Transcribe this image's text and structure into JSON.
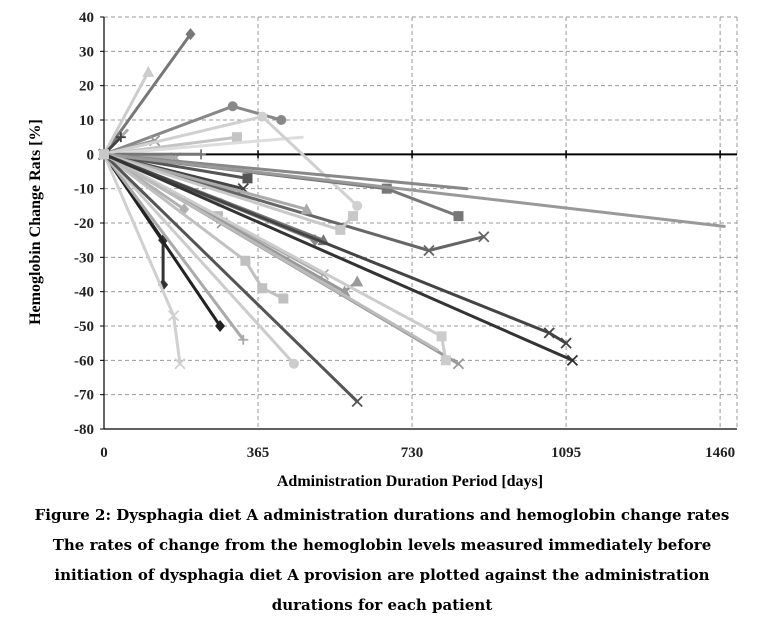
{
  "caption": {
    "title": "Figure 2: Dysphagia diet A administration durations and hemoglobin change rates",
    "line1": "The rates of change from the hemoglobin levels measured immediately before",
    "line2": "initiation of dysphagia diet A provision are plotted against the administration",
    "line3": "durations for each patient"
  },
  "chart_data": {
    "type": "line",
    "title": "",
    "xlabel": "Administration Duration  Period [days]",
    "ylabel": "Hemoglobin Change Rats [%]",
    "xlim": [
      0,
      1500
    ],
    "ylim": [
      -80,
      40
    ],
    "xticks": [
      0,
      365,
      730,
      1095,
      1460
    ],
    "yticks": [
      40,
      30,
      20,
      10,
      0,
      -10,
      -20,
      -30,
      -40,
      -50,
      -60,
      -70,
      -80
    ],
    "grid": "dashed",
    "legend": "none",
    "series": [
      {
        "color": "#777777",
        "marker": "diamond",
        "points": [
          [
            0,
            0
          ],
          [
            205,
            35
          ]
        ]
      },
      {
        "color": "#cccccc",
        "marker": "triangle",
        "points": [
          [
            0,
            0
          ],
          [
            105,
            24
          ]
        ]
      },
      {
        "color": "#888888",
        "marker": "circle",
        "points": [
          [
            0,
            0
          ],
          [
            305,
            14
          ],
          [
            420,
            10
          ]
        ]
      },
      {
        "color": "#c4c4c4",
        "marker": "square",
        "points": [
          [
            0,
            0
          ],
          [
            315,
            5
          ]
        ]
      },
      {
        "color": "#dddddd",
        "marker": "none",
        "points": [
          [
            0,
            0
          ],
          [
            470,
            5
          ]
        ]
      },
      {
        "color": "#999999",
        "marker": "cross",
        "points": [
          [
            0,
            0
          ],
          [
            120,
            4
          ]
        ]
      },
      {
        "color": "#aaaaaa",
        "marker": "none",
        "points": [
          [
            0,
            0
          ],
          [
            55,
            7
          ]
        ]
      },
      {
        "color": "#444444",
        "marker": "plus",
        "points": [
          [
            0,
            0
          ],
          [
            40,
            5
          ]
        ]
      },
      {
        "color": "#aaaaaa",
        "marker": "cross",
        "points": [
          [
            0,
            0
          ],
          [
            170,
            -1
          ]
        ]
      },
      {
        "color": "#777777",
        "marker": "plus",
        "points": [
          [
            0,
            0
          ],
          [
            230,
            0
          ]
        ]
      },
      {
        "color": "#d0d0d0",
        "marker": "circle",
        "points": [
          [
            0,
            0
          ],
          [
            375,
            11
          ],
          [
            600,
            -15
          ]
        ]
      },
      {
        "color": "#dddddd",
        "marker": "circle",
        "points": [
          [
            0,
            0
          ],
          [
            275,
            -14
          ]
        ]
      },
      {
        "color": "#555555",
        "marker": "square",
        "points": [
          [
            0,
            0
          ],
          [
            340,
            -7
          ]
        ]
      },
      {
        "color": "#444444",
        "marker": "cross",
        "points": [
          [
            0,
            0
          ],
          [
            330,
            -10
          ]
        ]
      },
      {
        "color": "#888888",
        "marker": "none",
        "points": [
          [
            0,
            0
          ],
          [
            860,
            -10
          ]
        ]
      },
      {
        "color": "#777777",
        "marker": "square",
        "points": [
          [
            0,
            0
          ],
          [
            670,
            -10
          ],
          [
            840,
            -18
          ]
        ]
      },
      {
        "color": "#999999",
        "marker": "none",
        "points": [
          [
            0,
            0
          ],
          [
            1470,
            -21
          ]
        ]
      },
      {
        "color": "#666666",
        "marker": "cross",
        "points": [
          [
            0,
            0
          ],
          [
            770,
            -28
          ],
          [
            900,
            -24
          ]
        ]
      },
      {
        "color": "#aaaaaa",
        "marker": "triangle",
        "points": [
          [
            0,
            0
          ],
          [
            480,
            -16
          ]
        ]
      },
      {
        "color": "#c8c8c8",
        "marker": "square",
        "points": [
          [
            0,
            0
          ],
          [
            560,
            -22
          ],
          [
            590,
            -18
          ]
        ]
      },
      {
        "color": "#b0b0b0",
        "marker": "diamond",
        "points": [
          [
            0,
            0
          ],
          [
            190,
            -16
          ]
        ]
      },
      {
        "color": "#999999",
        "marker": "cross",
        "points": [
          [
            0,
            0
          ],
          [
            280,
            -20
          ]
        ]
      },
      {
        "color": "#bbbbbb",
        "marker": "square",
        "points": [
          [
            0,
            0
          ],
          [
            270,
            -18
          ]
        ]
      },
      {
        "color": "#888888",
        "marker": "diamond",
        "points": [
          [
            0,
            0
          ],
          [
            500,
            -25
          ]
        ]
      },
      {
        "color": "#777777",
        "marker": "triangle",
        "points": [
          [
            0,
            0
          ],
          [
            520,
            -25
          ]
        ]
      },
      {
        "color": "#c0c0c0",
        "marker": "square",
        "points": [
          [
            0,
            0
          ],
          [
            335,
            -31
          ],
          [
            375,
            -39
          ],
          [
            425,
            -42
          ]
        ]
      },
      {
        "color": "#aaaaaa",
        "marker": "cross",
        "points": [
          [
            0,
            0
          ],
          [
            520,
            -35
          ]
        ]
      },
      {
        "color": "#999999",
        "marker": "triangle",
        "points": [
          [
            0,
            0
          ],
          [
            570,
            -40
          ],
          [
            600,
            -37
          ]
        ]
      },
      {
        "color": "#333333",
        "marker": "diamond",
        "points": [
          [
            0,
            0
          ],
          [
            140,
            -25
          ],
          [
            140,
            -38
          ]
        ]
      },
      {
        "color": "#222222",
        "marker": "diamond",
        "points": [
          [
            0,
            0
          ],
          [
            275,
            -50
          ]
        ]
      },
      {
        "color": "#d0d0d0",
        "marker": "cross",
        "points": [
          [
            0,
            0
          ],
          [
            165,
            -47
          ],
          [
            180,
            -61
          ]
        ]
      },
      {
        "color": "#aaaaaa",
        "marker": "plus",
        "points": [
          [
            0,
            0
          ],
          [
            330,
            -54
          ]
        ]
      },
      {
        "color": "#cccccc",
        "marker": "circle",
        "points": [
          [
            0,
            0
          ],
          [
            450,
            -61
          ]
        ]
      },
      {
        "color": "#555555",
        "marker": "cross",
        "points": [
          [
            0,
            0
          ],
          [
            600,
            -72
          ]
        ]
      },
      {
        "color": "#999999",
        "marker": "cross",
        "points": [
          [
            0,
            0
          ],
          [
            840,
            -61
          ]
        ]
      },
      {
        "color": "#cccccc",
        "marker": "square",
        "points": [
          [
            0,
            0
          ],
          [
            800,
            -53
          ],
          [
            810,
            -60
          ]
        ]
      },
      {
        "color": "#bbbbbb",
        "marker": "none",
        "points": [
          [
            0,
            0
          ],
          [
            790,
            -57
          ]
        ]
      },
      {
        "color": "#444444",
        "marker": "cross",
        "points": [
          [
            0,
            0
          ],
          [
            1055,
            -52
          ],
          [
            1095,
            -55
          ]
        ]
      },
      {
        "color": "#333333",
        "marker": "cross",
        "points": [
          [
            0,
            0
          ],
          [
            1110,
            -60
          ]
        ]
      }
    ]
  }
}
